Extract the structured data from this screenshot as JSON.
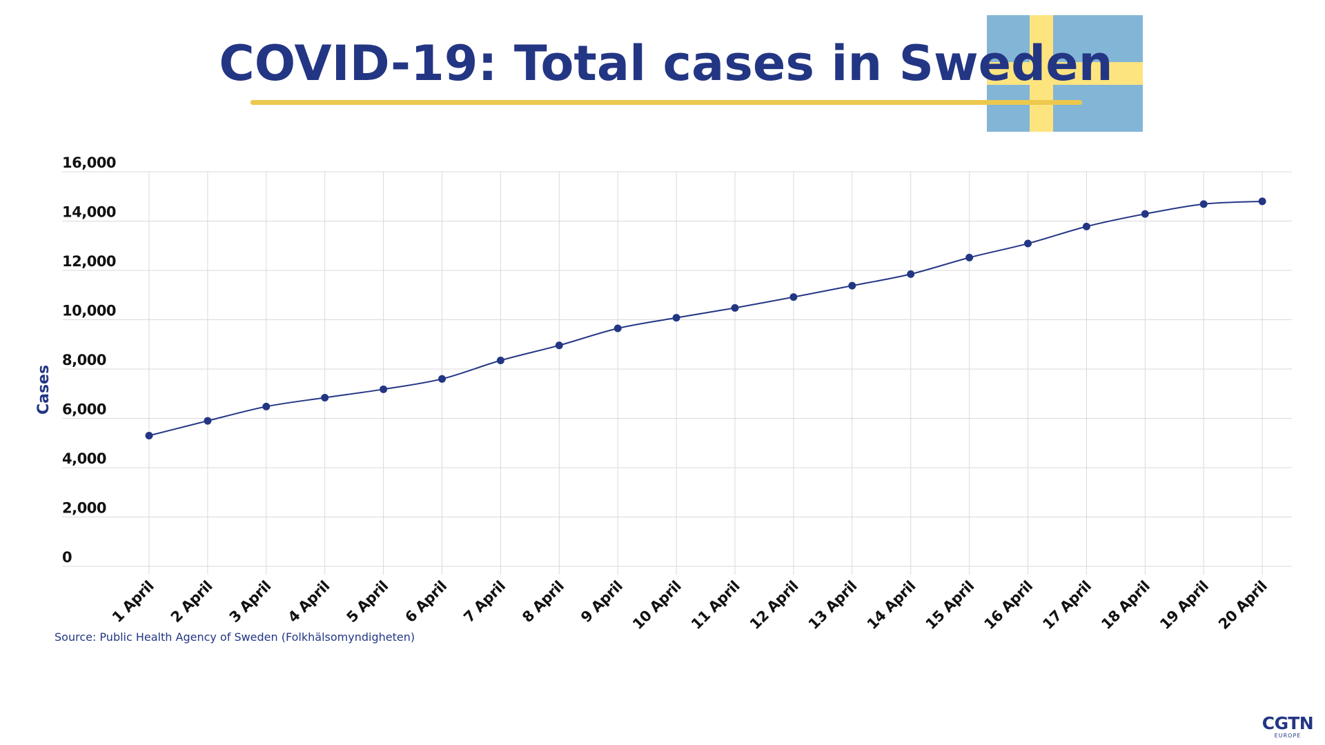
{
  "title": "COVID-19: Total cases in Sweden",
  "source": "Source: Public Health Agency of Sweden (Folkhälsomyndigheten)",
  "logo": {
    "main": "CGTN",
    "sub": "EUROPE"
  },
  "colors": {
    "primary": "#233684",
    "accent": "#ecc84d",
    "flag_blue": "#83b5d6",
    "flag_yellow": "#fde47f",
    "grid": "#d9d9d9"
  },
  "chart_data": {
    "type": "line",
    "title": "COVID-19: Total cases in Sweden",
    "xlabel": "",
    "ylabel": "Cases",
    "ylim": [
      0,
      16000
    ],
    "yticks": [
      "0",
      "2,000",
      "4,000",
      "6,000",
      "8,000",
      "10,000",
      "12,000",
      "14,000",
      "16,000"
    ],
    "grid": true,
    "legend": "none",
    "categories": [
      "1 April",
      "2 April",
      "3 April",
      "4 April",
      "5 April",
      "6 April",
      "7 April",
      "8 April",
      "9 April",
      "10 April",
      "11 April",
      "12 April",
      "13 April",
      "14 April",
      "15 April",
      "16 April",
      "17 April",
      "18 April",
      "19 April",
      "20 April"
    ],
    "values": [
      5300,
      5900,
      6480,
      6840,
      7180,
      7600,
      8350,
      8960,
      9650,
      10080,
      10480,
      10920,
      11380,
      11850,
      12520,
      13090,
      13780,
      14290,
      14690,
      14800
    ],
    "series_color": "#233684"
  }
}
